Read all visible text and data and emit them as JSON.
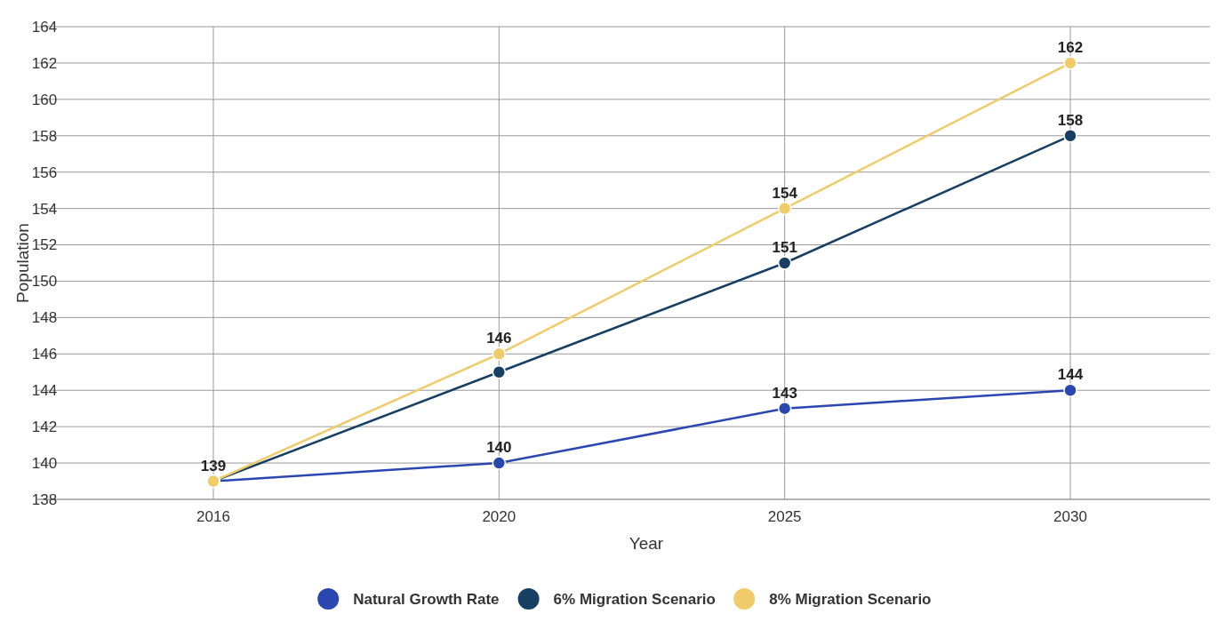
{
  "chart_data": {
    "type": "line",
    "xlabel": "Year",
    "ylabel": "Population",
    "categories": [
      "2016",
      "2020",
      "2025",
      "2030"
    ],
    "series": [
      {
        "name": "Natural Growth Rate",
        "color": "#2a46b0",
        "values": [
          139,
          140,
          143,
          144
        ],
        "value_labels": [
          null,
          "140",
          "143",
          "144"
        ]
      },
      {
        "name": "6% Migration Scenario",
        "color": "#163f63",
        "values": [
          139,
          145,
          151,
          158
        ],
        "value_labels": [
          null,
          null,
          "151",
          "158"
        ]
      },
      {
        "name": "8% Migration Scenario",
        "color": "#f0cb6a",
        "values": [
          139,
          146,
          154,
          162
        ],
        "value_labels": [
          "139",
          "146",
          "154",
          "162"
        ]
      }
    ],
    "ylim": [
      138,
      164
    ],
    "yticks": [
      138,
      140,
      142,
      144,
      146,
      148,
      150,
      152,
      154,
      156,
      158,
      160,
      162,
      164
    ],
    "grid": true,
    "legend": "bottom",
    "marker": "circle",
    "line_style": "solid"
  }
}
